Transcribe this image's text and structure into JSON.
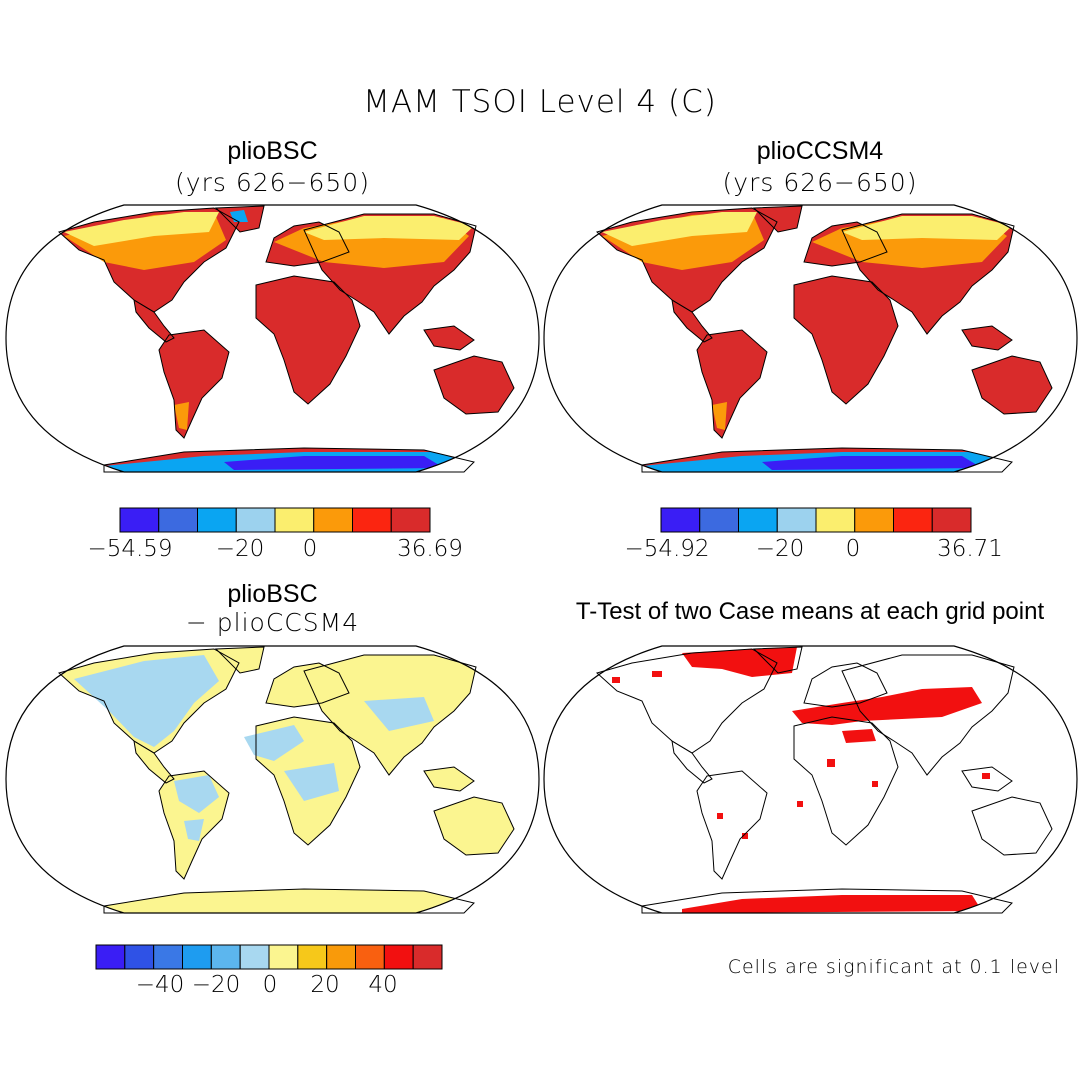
{
  "figure": {
    "title": "MAM TSOI Level 4 (C)"
  },
  "panels": [
    {
      "id": "plioBSC",
      "title": "plioBSC",
      "subtitle": "(yrs 626−650)",
      "colorbar": {
        "colors": [
          "#3a1ef5",
          "#3c6ae0",
          "#0aa5f2",
          "#9cd2ee",
          "#fbee6e",
          "#fb9a0a",
          "#fb2510",
          "#d92b2b"
        ],
        "labels": [
          "−54.59",
          "−20",
          "0",
          "36.69"
        ]
      }
    },
    {
      "id": "plioCCSM4",
      "title": "plioCCSM4",
      "subtitle": "(yrs 626−650)",
      "colorbar": {
        "colors": [
          "#3a1ef5",
          "#3c6ae0",
          "#0aa5f2",
          "#9cd2ee",
          "#fbee6e",
          "#fb9a0a",
          "#fb2510",
          "#d92b2b"
        ],
        "labels": [
          "−54.92",
          "−20",
          "0",
          "36.71"
        ]
      }
    },
    {
      "id": "difference",
      "title": "plioBSC",
      "subtitle": "− plioCCSM4",
      "colorbar": {
        "colors": [
          "#3a1ef5",
          "#2f52e6",
          "#3a78e6",
          "#1e9cf0",
          "#5cb6ee",
          "#a8d8f0",
          "#fbf590",
          "#f6c81a",
          "#f99a0a",
          "#f96010",
          "#f21010",
          "#d92b2b"
        ],
        "labels": [
          "−40",
          "−20",
          "0",
          "20",
          "40"
        ]
      }
    },
    {
      "id": "ttest",
      "title": "T-Test of two Case means at each grid point",
      "note": "Cells are significant at 0.1 level"
    }
  ],
  "map_fills": {
    "temperature": {
      "land": "#d92b2b",
      "mid": "#fb9a0a",
      "cold": "#fbee6e",
      "ice": "#3c6ae0",
      "ice_dark": "#3a1ef5",
      "ice_light": "#0aa5f2"
    },
    "difference": {
      "land": "#a8d8f0",
      "alt": "#fbf590"
    },
    "significance": {
      "mark": "#f21010"
    }
  }
}
